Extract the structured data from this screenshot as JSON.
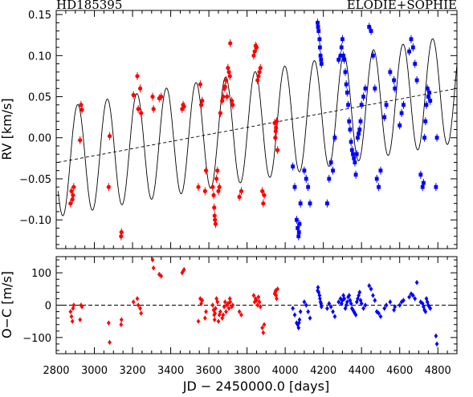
{
  "chart_data": [
    {
      "type": "scatter",
      "title_left": "HD185395",
      "title_right": "ELODIE+SOPHIE",
      "ylabel": "RV [km/s]",
      "xlim": [
        2800,
        4900
      ],
      "ylim": [
        -0.135,
        0.155
      ],
      "yticks": [
        -0.1,
        -0.05,
        0.0,
        0.05,
        0.1,
        0.15
      ],
      "ytick_labels": [
        "−0.10",
        "−0.05",
        "0.00",
        "0.05",
        "0.10",
        "0.15"
      ],
      "model": {
        "type": "sinusoid",
        "period": 155,
        "amplitude": 0.066,
        "phase_ref": 2835,
        "trend_start": [
          2810,
          -0.03
        ],
        "trend_end": [
          4900,
          0.06
        ]
      },
      "trend_line": {
        "style": "dashed",
        "x": [
          2810,
          4900
        ],
        "y": [
          -0.03,
          0.06
        ]
      },
      "series": [
        {
          "instrument": "ELODIE",
          "color": "#ff0000",
          "marker": "circle",
          "x": [
            2875,
            2880,
            2885,
            2888,
            2892,
            2925,
            2930,
            2935,
            3075,
            3080,
            3140,
            3142,
            3205,
            3225,
            3230,
            3240,
            3245,
            3305,
            3310,
            3340,
            3350,
            3460,
            3465,
            3470,
            3545,
            3555,
            3560,
            3565,
            3580,
            3585,
            3620,
            3625,
            3628,
            3630,
            3632,
            3635,
            3640,
            3645,
            3650,
            3655,
            3660,
            3670,
            3675,
            3680,
            3685,
            3690,
            3695,
            3700,
            3705,
            3710,
            3712,
            3720,
            3725,
            3760,
            3770,
            3835,
            3840,
            3845,
            3850,
            3855,
            3860,
            3865,
            3870,
            3880,
            3885,
            3890,
            3945,
            3948,
            3950,
            3952,
            3955,
            3960
          ],
          "y": [
            -0.08,
            -0.065,
            -0.075,
            -0.07,
            -0.06,
            -0.003,
            0.04,
            0.034,
            -0.06,
            0.002,
            -0.12,
            -0.115,
            0.052,
            0.075,
            0.035,
            0.06,
            0.03,
            0.05,
            0.035,
            0.048,
            0.05,
            0.035,
            0.04,
            0.038,
            -0.06,
            0.065,
            0.04,
            0.045,
            -0.065,
            -0.04,
            -0.06,
            -0.07,
            -0.085,
            -0.095,
            -0.1,
            -0.105,
            -0.05,
            -0.04,
            -0.065,
            -0.06,
            0.03,
            0.045,
            0.05,
            0.06,
            0.062,
            0.07,
            0.05,
            0.085,
            0.08,
            0.075,
            0.115,
            0.045,
            0.04,
            -0.072,
            -0.065,
            0.1,
            0.105,
            0.112,
            0.11,
            0.07,
            0.075,
            0.08,
            0.085,
            -0.065,
            -0.08,
            -0.07,
            0.018,
            0.0,
            0.008,
            0.012,
            0.02,
            -0.015
          ]
        },
        {
          "instrument": "SOPHIE",
          "color": "#0000ff",
          "marker": "square",
          "x": [
            4040,
            4050,
            4060,
            4065,
            4070,
            4072,
            4075,
            4080,
            4100,
            4110,
            4120,
            4130,
            4170,
            4172,
            4175,
            4180,
            4182,
            4185,
            4188,
            4190,
            4220,
            4230,
            4240,
            4250,
            4260,
            4280,
            4290,
            4295,
            4300,
            4305,
            4310,
            4315,
            4320,
            4325,
            4330,
            4335,
            4340,
            4345,
            4350,
            4355,
            4360,
            4365,
            4370,
            4375,
            4380,
            4385,
            4390,
            4395,
            4400,
            4410,
            4420,
            4440,
            4450,
            4460,
            4470,
            4480,
            4490,
            4500,
            4520,
            4530,
            4550,
            4570,
            4575,
            4600,
            4610,
            4620,
            4650,
            4660,
            4670,
            4680,
            4690,
            4710,
            4720,
            4725,
            4730,
            4735,
            4740,
            4745,
            4750,
            4755,
            4760,
            4790,
            4795
          ],
          "y": [
            -0.035,
            -0.06,
            -0.1,
            -0.11,
            -0.12,
            -0.115,
            -0.105,
            -0.08,
            -0.04,
            -0.05,
            -0.06,
            -0.08,
            0.14,
            0.135,
            0.13,
            0.12,
            0.11,
            0.1,
            0.095,
            0.09,
            -0.08,
            -0.05,
            -0.03,
            -0.04,
            0.0,
            0.095,
            0.1,
            0.11,
            0.12,
            0.1,
            0.095,
            0.08,
            0.065,
            0.055,
            0.04,
            0.02,
            0.01,
            -0.005,
            -0.015,
            -0.02,
            -0.025,
            -0.03,
            -0.045,
            -0.02,
            0.0,
            0.005,
            0.01,
            0.02,
            0.04,
            0.05,
            0.06,
            0.135,
            0.13,
            0.1,
            0.06,
            -0.05,
            -0.06,
            -0.04,
            0.025,
            0.04,
            0.08,
            0.07,
            0.06,
            0.015,
            0.03,
            0.04,
            0.105,
            0.12,
            0.11,
            0.09,
            0.07,
            -0.045,
            -0.06,
            -0.055,
            0.0,
            0.02,
            0.04,
            0.06,
            0.05,
            0.055,
            0.045,
            -0.06,
            0.0
          ]
        }
      ]
    },
    {
      "type": "scatter",
      "xlabel": "JD − 2450000.0 [days]",
      "ylabel": "O−C [m/s]",
      "xlim": [
        2800,
        4900
      ],
      "ylim": [
        -150,
        150
      ],
      "xticks": [
        2800,
        3000,
        3200,
        3400,
        3600,
        3800,
        4000,
        4200,
        4400,
        4600,
        4800
      ],
      "xtick_labels": [
        "2800",
        "3000",
        "3200",
        "3400",
        "3600",
        "3800",
        "4000",
        "4200",
        "4400",
        "4600",
        "4800"
      ],
      "yticks": [
        -100,
        0,
        100
      ],
      "ytick_labels": [
        "−100",
        "0",
        "100"
      ],
      "zero_line": {
        "style": "dashed",
        "y": 0
      },
      "series": [
        {
          "instrument": "ELODIE",
          "color": "#ff0000",
          "marker": "diamond",
          "x": [
            2875,
            2880,
            2885,
            2888,
            2892,
            2925,
            2930,
            2935,
            3075,
            3080,
            3140,
            3142,
            3205,
            3225,
            3230,
            3240,
            3245,
            3305,
            3310,
            3340,
            3350,
            3460,
            3465,
            3470,
            3545,
            3555,
            3560,
            3565,
            3580,
            3585,
            3620,
            3625,
            3628,
            3630,
            3632,
            3635,
            3640,
            3645,
            3650,
            3655,
            3660,
            3670,
            3675,
            3680,
            3685,
            3690,
            3695,
            3700,
            3705,
            3710,
            3712,
            3720,
            3725,
            3760,
            3770,
            3835,
            3840,
            3845,
            3850,
            3855,
            3860,
            3865,
            3870,
            3880,
            3885,
            3890,
            3945,
            3948,
            3950,
            3952,
            3955,
            3960
          ],
          "y": [
            -20,
            -35,
            -50,
            -10,
            0,
            -45,
            0,
            -5,
            -55,
            -115,
            -60,
            -45,
            10,
            20,
            0,
            -10,
            -25,
            140,
            115,
            95,
            90,
            100,
            105,
            110,
            -50,
            20,
            5,
            15,
            -40,
            -20,
            0,
            -15,
            -30,
            -45,
            -25,
            -10,
            20,
            10,
            -50,
            -30,
            -20,
            -40,
            -30,
            -5,
            10,
            -20,
            0,
            5,
            -10,
            20,
            10,
            -5,
            0,
            -20,
            -30,
            30,
            10,
            20,
            15,
            0,
            25,
            10,
            -5,
            -70,
            -85,
            -60,
            35,
            40,
            45,
            30,
            20,
            50
          ]
        },
        {
          "instrument": "SOPHIE",
          "color": "#0000ff",
          "marker": "diamond",
          "x": [
            4040,
            4050,
            4060,
            4065,
            4070,
            4072,
            4075,
            4080,
            4100,
            4110,
            4120,
            4130,
            4170,
            4172,
            4175,
            4180,
            4182,
            4185,
            4188,
            4190,
            4220,
            4230,
            4240,
            4250,
            4260,
            4280,
            4290,
            4295,
            4300,
            4305,
            4310,
            4315,
            4320,
            4325,
            4330,
            4335,
            4340,
            4345,
            4350,
            4355,
            4360,
            4365,
            4370,
            4375,
            4380,
            4385,
            4390,
            4395,
            4400,
            4410,
            4420,
            4440,
            4450,
            4460,
            4470,
            4480,
            4490,
            4500,
            4520,
            4530,
            4550,
            4570,
            4575,
            4600,
            4610,
            4620,
            4650,
            4660,
            4670,
            4680,
            4690,
            4710,
            4720,
            4725,
            4730,
            4735,
            4740,
            4745,
            4750,
            4755,
            4760,
            4790,
            4795
          ],
          "y": [
            -10,
            -30,
            -55,
            -60,
            -70,
            -55,
            -45,
            -20,
            10,
            0,
            -20,
            -40,
            45,
            55,
            40,
            30,
            20,
            10,
            5,
            -5,
            -10,
            5,
            -5,
            -20,
            -35,
            10,
            20,
            5,
            15,
            30,
            20,
            -10,
            0,
            10,
            25,
            30,
            15,
            5,
            -10,
            -15,
            -20,
            -25,
            -30,
            10,
            20,
            30,
            40,
            15,
            5,
            -10,
            0,
            60,
            50,
            30,
            15,
            -20,
            -25,
            -35,
            -10,
            0,
            10,
            -15,
            -5,
            0,
            10,
            15,
            25,
            35,
            30,
            20,
            70,
            10,
            5,
            -5,
            -15,
            -20,
            20,
            10,
            0,
            -5,
            -10,
            -95,
            -120
          ]
        }
      ]
    }
  ]
}
